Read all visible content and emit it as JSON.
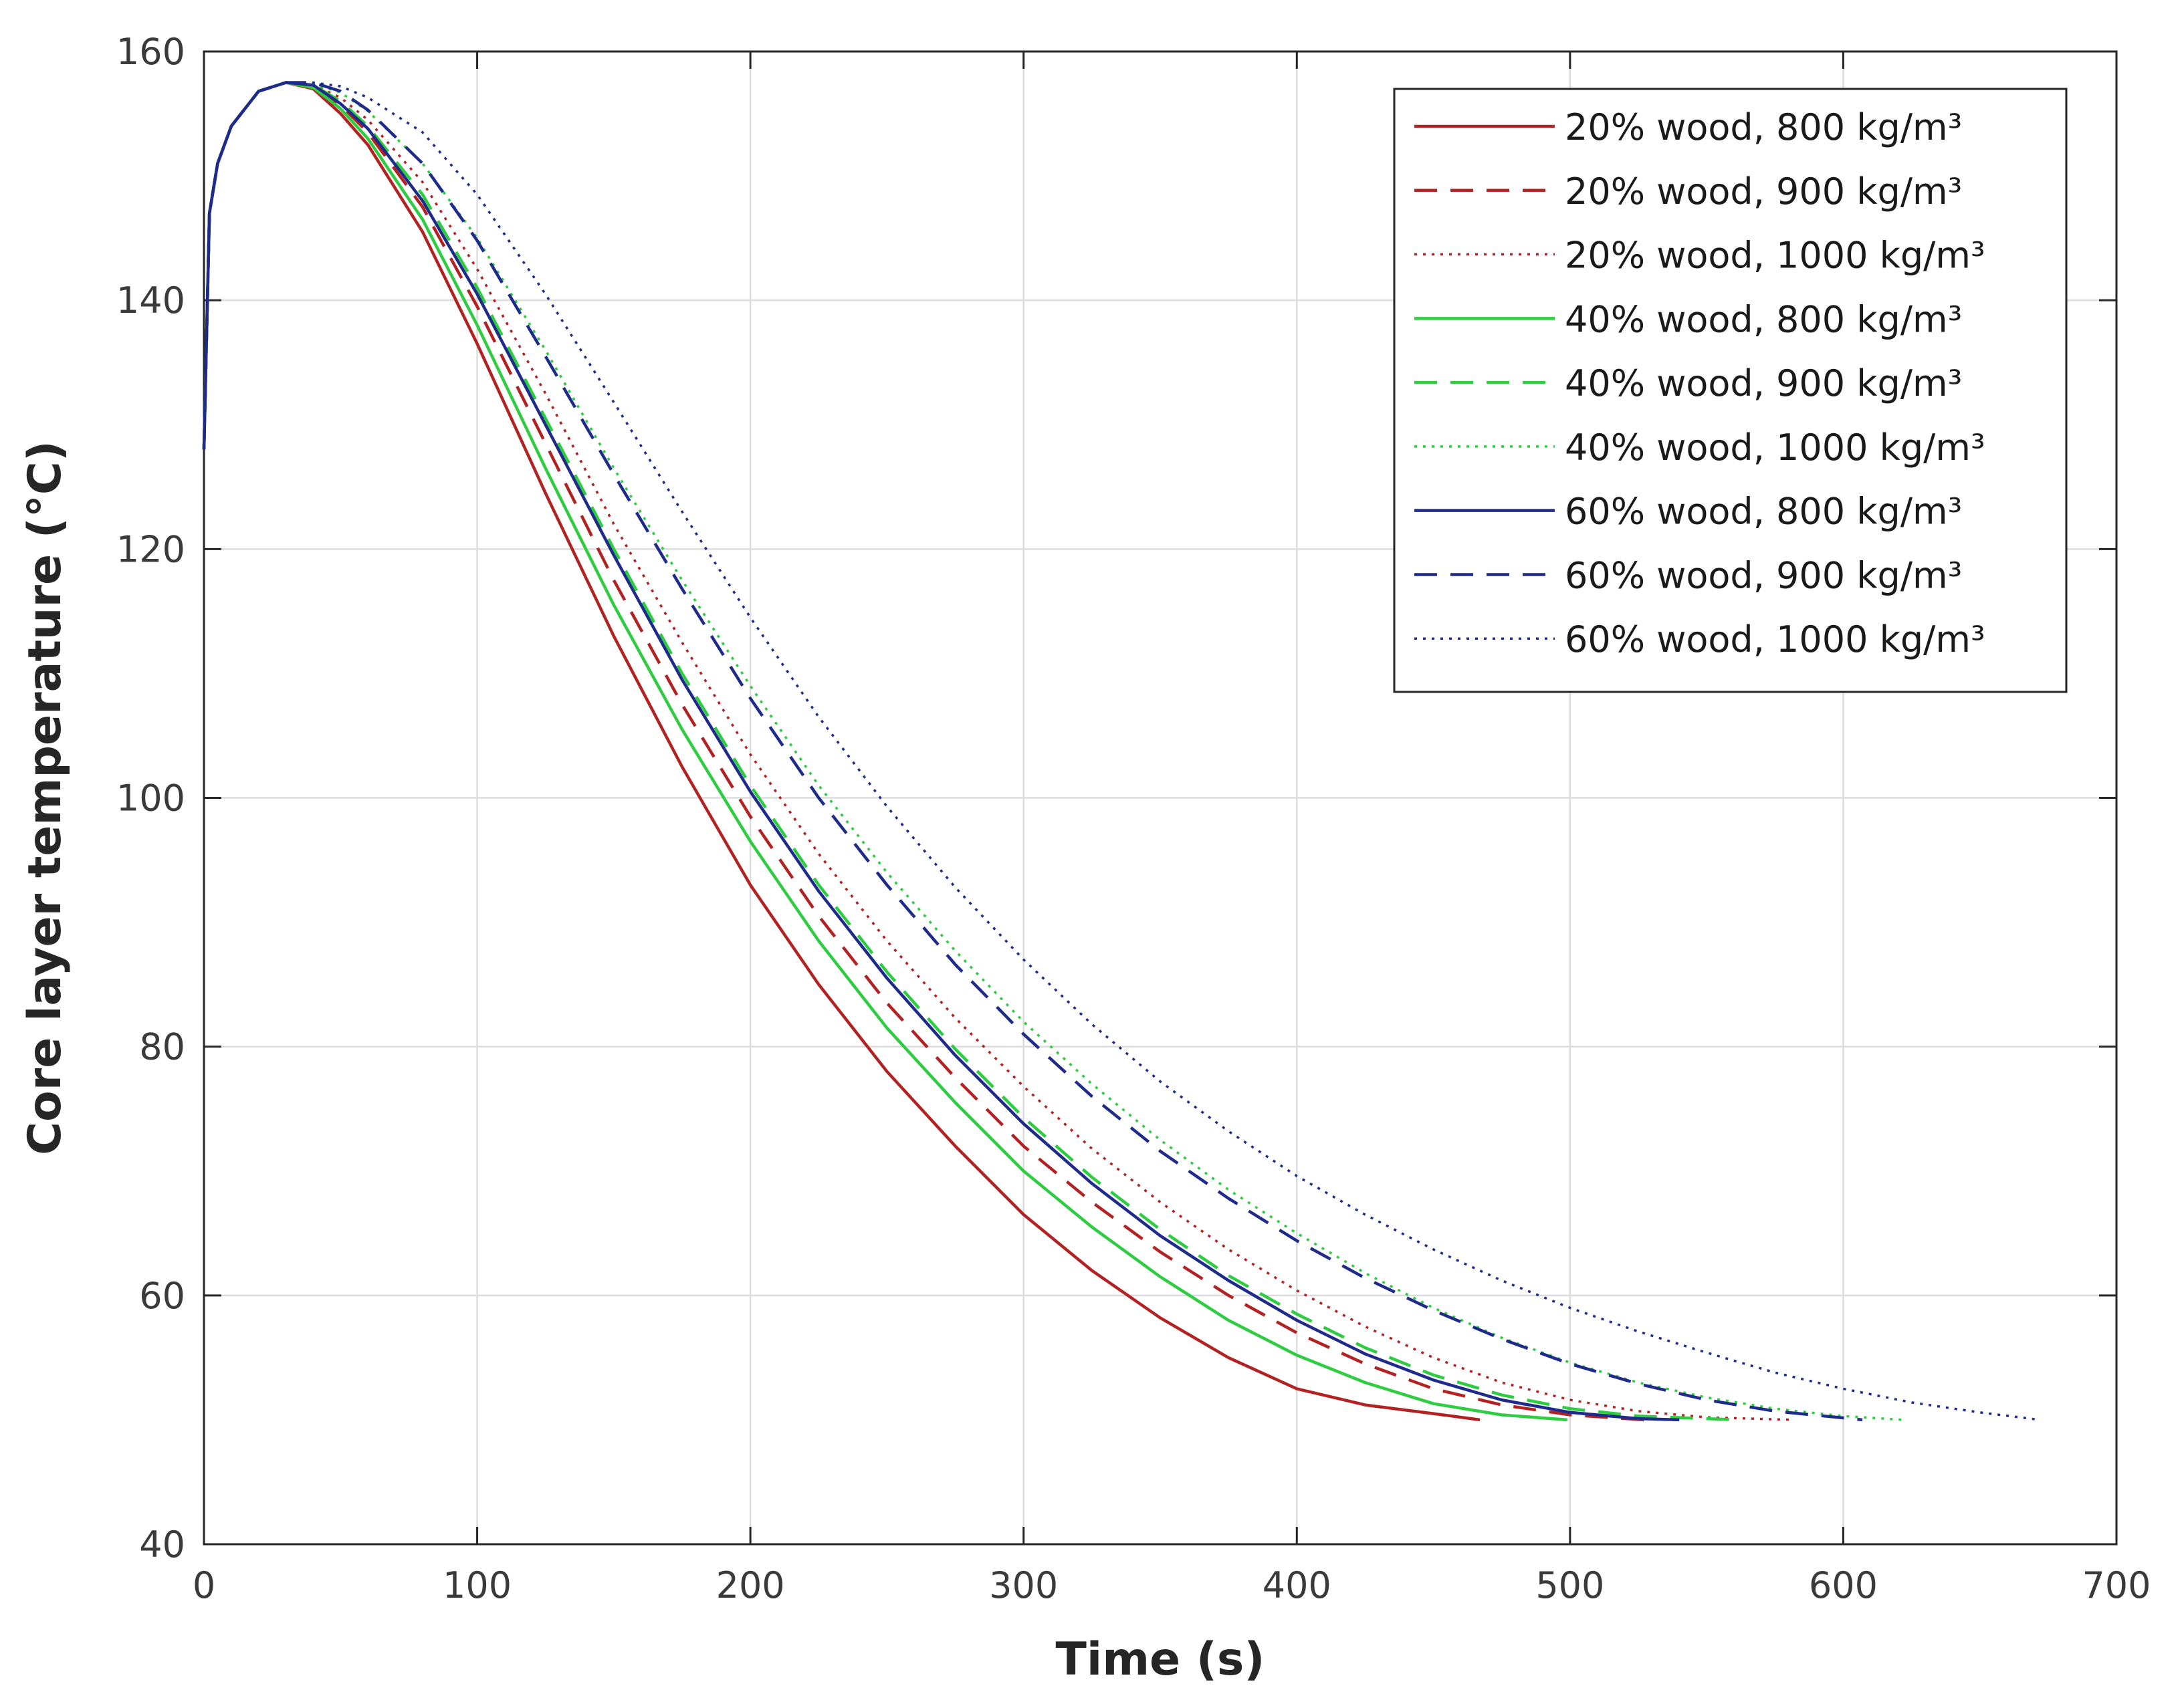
{
  "chart_data": {
    "type": "line",
    "title": "",
    "xlabel": "Time (s)",
    "ylabel": "Core layer temperature  (°C)",
    "xlim": [
      0,
      700
    ],
    "ylim": [
      40,
      160
    ],
    "xticks": [
      0,
      100,
      200,
      300,
      400,
      500,
      600,
      700
    ],
    "yticks": [
      40,
      60,
      80,
      100,
      120,
      140,
      160
    ],
    "grid": true,
    "legend_position": "top-right",
    "series": [
      {
        "name": "20% wood, 800 kg/m³",
        "color": "#b22222",
        "dash": "solid",
        "x": [
          0,
          2,
          5,
          10,
          20,
          30,
          40,
          50,
          60,
          80,
          100,
          125,
          150,
          175,
          200,
          225,
          250,
          275,
          300,
          325,
          350,
          375,
          400,
          425,
          450,
          467
        ],
        "y": [
          128,
          147,
          151,
          154,
          156.8,
          157.5,
          157,
          155,
          152.5,
          145.5,
          136.5,
          124.5,
          113,
          102.5,
          93,
          85,
          78,
          72,
          66.5,
          62,
          58.2,
          55,
          52.5,
          51.2,
          50.5,
          50
        ]
      },
      {
        "name": "20% wood, 900 kg/m³",
        "color": "#b22222",
        "dash": "dashed",
        "x": [
          0,
          2,
          5,
          10,
          20,
          30,
          40,
          50,
          60,
          80,
          100,
          125,
          150,
          175,
          200,
          225,
          250,
          275,
          300,
          325,
          350,
          375,
          400,
          425,
          450,
          475,
          500,
          527
        ],
        "y": [
          128,
          147,
          151,
          154,
          156.8,
          157.5,
          157.2,
          155.7,
          153.5,
          147.5,
          139.5,
          128.5,
          117.5,
          107.5,
          98.5,
          90.5,
          83.5,
          77.5,
          72,
          67.5,
          63.5,
          60,
          57,
          54.5,
          52.5,
          51.2,
          50.4,
          50
        ]
      },
      {
        "name": "20% wood, 1000 kg/m³",
        "color": "#b22222",
        "dash": "dotted",
        "x": [
          0,
          2,
          5,
          10,
          20,
          30,
          40,
          50,
          60,
          80,
          100,
          125,
          150,
          175,
          200,
          225,
          250,
          275,
          300,
          325,
          350,
          375,
          400,
          425,
          450,
          475,
          500,
          525,
          550,
          582
        ],
        "y": [
          128,
          147,
          151,
          154,
          156.8,
          157.5,
          157.3,
          156.3,
          154.5,
          149.5,
          142.5,
          132.5,
          122,
          112.5,
          103.5,
          95.5,
          88.5,
          82.3,
          76.8,
          71.8,
          67.5,
          63.7,
          60.4,
          57.5,
          55,
          53,
          51.6,
          50.7,
          50.2,
          50
        ]
      },
      {
        "name": "40% wood, 800 kg/m³",
        "color": "#2ecc40",
        "dash": "solid",
        "x": [
          0,
          2,
          5,
          10,
          20,
          30,
          40,
          50,
          60,
          80,
          100,
          125,
          150,
          175,
          200,
          225,
          250,
          275,
          300,
          325,
          350,
          375,
          400,
          425,
          450,
          475,
          499
        ],
        "y": [
          128,
          147,
          151,
          154,
          156.8,
          157.5,
          157.1,
          155.4,
          153,
          146.5,
          138,
          126.5,
          115.5,
          105.5,
          96.5,
          88.5,
          81.5,
          75.5,
          70,
          65.5,
          61.5,
          58,
          55.2,
          53,
          51.3,
          50.4,
          50
        ]
      },
      {
        "name": "40% wood, 900 kg/m³",
        "color": "#2ecc40",
        "dash": "dashed",
        "x": [
          0,
          2,
          5,
          10,
          20,
          30,
          40,
          50,
          60,
          80,
          100,
          125,
          150,
          175,
          200,
          225,
          250,
          275,
          300,
          325,
          350,
          375,
          400,
          425,
          450,
          475,
          500,
          525,
          562
        ],
        "y": [
          128,
          147,
          151,
          154,
          156.8,
          157.5,
          157.3,
          156,
          154,
          148.5,
          141,
          130.5,
          120,
          110,
          101,
          93,
          86,
          79.8,
          74.3,
          69.5,
          65.3,
          61.6,
          58.5,
          55.8,
          53.6,
          52,
          50.9,
          50.3,
          50
        ]
      },
      {
        "name": "40% wood, 1000 kg/m³",
        "color": "#2ecc40",
        "dash": "dotted",
        "x": [
          0,
          2,
          5,
          10,
          20,
          30,
          40,
          50,
          60,
          80,
          100,
          125,
          150,
          175,
          200,
          225,
          250,
          275,
          300,
          325,
          350,
          375,
          400,
          425,
          450,
          475,
          500,
          525,
          550,
          575,
          600,
          622
        ],
        "y": [
          128,
          147,
          151,
          154,
          156.8,
          157.5,
          157.4,
          156.7,
          155.2,
          151,
          145,
          136,
          126.5,
          117.5,
          109,
          101,
          94,
          87.7,
          82,
          77,
          72.5,
          68.5,
          65,
          61.8,
          59,
          56.6,
          54.6,
          53,
          51.8,
          50.9,
          50.3,
          50
        ]
      },
      {
        "name": "60% wood, 800 kg/m³",
        "color": "#1f2b8a",
        "dash": "solid",
        "x": [
          0,
          2,
          5,
          10,
          20,
          30,
          40,
          50,
          60,
          80,
          100,
          125,
          150,
          175,
          200,
          225,
          250,
          275,
          300,
          325,
          350,
          375,
          400,
          425,
          450,
          475,
          500,
          525,
          540
        ],
        "y": [
          128,
          147,
          151,
          154,
          156.8,
          157.5,
          157.3,
          155.8,
          153.8,
          148,
          140.5,
          130,
          119.5,
          109.5,
          100.5,
          92.5,
          85.5,
          79.3,
          73.8,
          69,
          64.8,
          61.2,
          58,
          55.3,
          53.2,
          51.6,
          50.6,
          50.1,
          50
        ]
      },
      {
        "name": "60% wood, 900 kg/m³",
        "color": "#1f2b8a",
        "dash": "dashed",
        "x": [
          0,
          2,
          5,
          10,
          20,
          30,
          40,
          50,
          60,
          80,
          100,
          125,
          150,
          175,
          200,
          225,
          250,
          275,
          300,
          325,
          350,
          375,
          400,
          425,
          450,
          475,
          500,
          525,
          550,
          575,
          607
        ],
        "y": [
          128,
          147,
          151,
          154,
          156.8,
          157.5,
          157.5,
          156.8,
          155.3,
          151,
          144.8,
          135.5,
          126,
          116.8,
          108,
          100,
          93,
          86.6,
          81,
          76,
          71.6,
          67.8,
          64.4,
          61.4,
          58.8,
          56.5,
          54.5,
          52.9,
          51.6,
          50.7,
          50
        ]
      },
      {
        "name": "60% wood, 1000 kg/m³",
        "color": "#1f2b8a",
        "dash": "dotted",
        "x": [
          0,
          2,
          5,
          10,
          20,
          30,
          40,
          50,
          60,
          80,
          100,
          125,
          150,
          175,
          200,
          225,
          250,
          275,
          300,
          325,
          350,
          375,
          400,
          425,
          450,
          475,
          500,
          525,
          550,
          575,
          600,
          625,
          650,
          672
        ],
        "y": [
          128,
          147,
          151,
          154,
          156.8,
          157.5,
          157.5,
          157.2,
          156.3,
          153.5,
          148.5,
          140.5,
          131.8,
          123,
          114.5,
          106.5,
          99.3,
          92.8,
          87,
          81.8,
          77.2,
          73.2,
          69.6,
          66.5,
          63.7,
          61.2,
          59,
          57.1,
          55.4,
          53.8,
          52.5,
          51.4,
          50.6,
          50
        ]
      }
    ]
  }
}
